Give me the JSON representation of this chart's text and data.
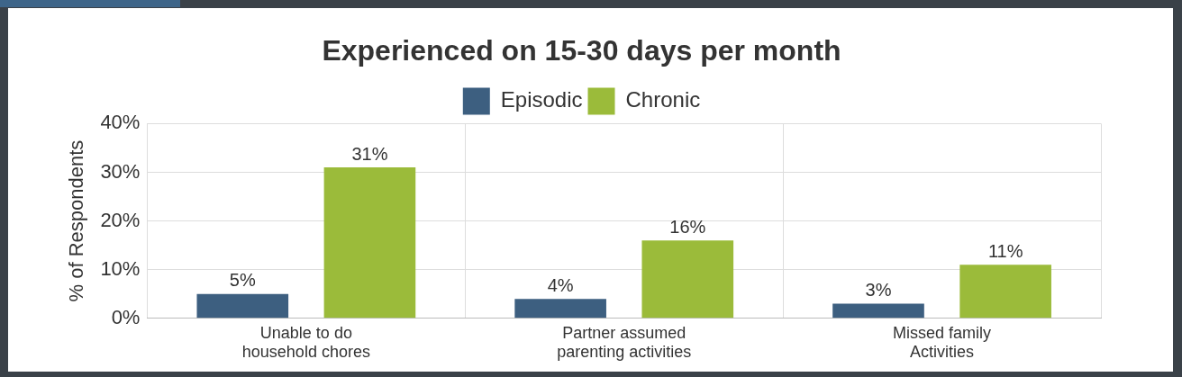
{
  "chart_data": {
    "type": "bar",
    "title": "Experienced on 15-30 days per month",
    "ylabel": "% of Respondents",
    "categories": [
      "Unable to do household chores",
      "Partner assumed parenting activities",
      "Missed family Activities"
    ],
    "series": [
      {
        "name": "Episodic",
        "color": "#3d5f80",
        "values": [
          5,
          4,
          3
        ],
        "value_labels": [
          "5%",
          "4%",
          "3%"
        ]
      },
      {
        "name": "Chronic",
        "color": "#9bbb3a",
        "values": [
          31,
          16,
          11
        ],
        "value_labels": [
          "31%",
          "16%",
          "11%"
        ]
      }
    ],
    "ylim": [
      0,
      40
    ],
    "yticks": [
      {
        "value": 0,
        "label": "0%"
      },
      {
        "value": 10,
        "label": "10%"
      },
      {
        "value": 20,
        "label": "20%"
      },
      {
        "value": 30,
        "label": "30%"
      },
      {
        "value": 40,
        "label": "40%"
      }
    ],
    "grid": true,
    "legend": "top"
  }
}
